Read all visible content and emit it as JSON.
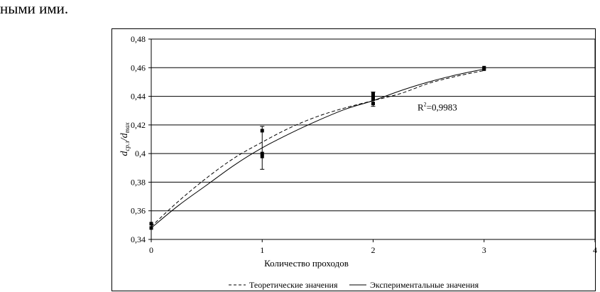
{
  "page": {
    "top_text": "ными ими."
  },
  "chart_data": {
    "type": "line",
    "xlabel": "Количество проходов",
    "ylabel_main": "d",
    "ylabel_sub1": "ср.з",
    "ylabel_mid": "/d",
    "ylabel_sub2": "max",
    "xlim": [
      0,
      4
    ],
    "ylim": [
      0.34,
      0.48
    ],
    "x_ticks": [
      0,
      1,
      2,
      3,
      4
    ],
    "x_tick_labels": [
      "0",
      "1",
      "2",
      "3",
      "4"
    ],
    "y_ticks": [
      0.34,
      0.36,
      0.38,
      0.4,
      0.42,
      0.44,
      0.46,
      0.48
    ],
    "y_tick_labels": [
      "0,34",
      "0,36",
      "0,38",
      "0,4",
      "0,42",
      "0,44",
      "0,46",
      "0,48"
    ],
    "grid": "horizontal",
    "legend_position": "bottom",
    "annotation": {
      "text_base": "R",
      "text_sup": "2",
      "text_rest": "=0,9983",
      "x": 2.4,
      "y": 0.43
    },
    "series": [
      {
        "name": "Теоретические значения",
        "style": "dashed",
        "x": [
          0,
          0.25,
          0.5,
          0.75,
          1,
          1.25,
          1.5,
          1.75,
          2,
          2.25,
          2.5,
          2.75,
          3
        ],
        "y": [
          0.349,
          0.367,
          0.383,
          0.397,
          0.408,
          0.418,
          0.426,
          0.432,
          0.437,
          0.442,
          0.449,
          0.454,
          0.458
        ]
      },
      {
        "name": "Экспериментальные значения",
        "style": "solid",
        "x": [
          0,
          0.25,
          0.5,
          0.75,
          1,
          1.25,
          1.5,
          1.75,
          2,
          2.25,
          2.5,
          2.75,
          3
        ],
        "y": [
          0.348,
          0.364,
          0.378,
          0.392,
          0.404,
          0.414,
          0.423,
          0.431,
          0.437,
          0.444,
          0.45,
          0.455,
          0.459
        ]
      }
    ],
    "markers": {
      "x": [
        0,
        0,
        1,
        1,
        1,
        2,
        2,
        2,
        2,
        3,
        3
      ],
      "y": [
        0.351,
        0.348,
        0.416,
        0.4,
        0.398,
        0.442,
        0.44,
        0.438,
        0.435,
        0.46,
        0.459
      ]
    },
    "error_bars": [
      {
        "x": 1,
        "low": 0.389,
        "high": 0.419
      },
      {
        "x": 2,
        "low": 0.433,
        "high": 0.443
      }
    ]
  }
}
